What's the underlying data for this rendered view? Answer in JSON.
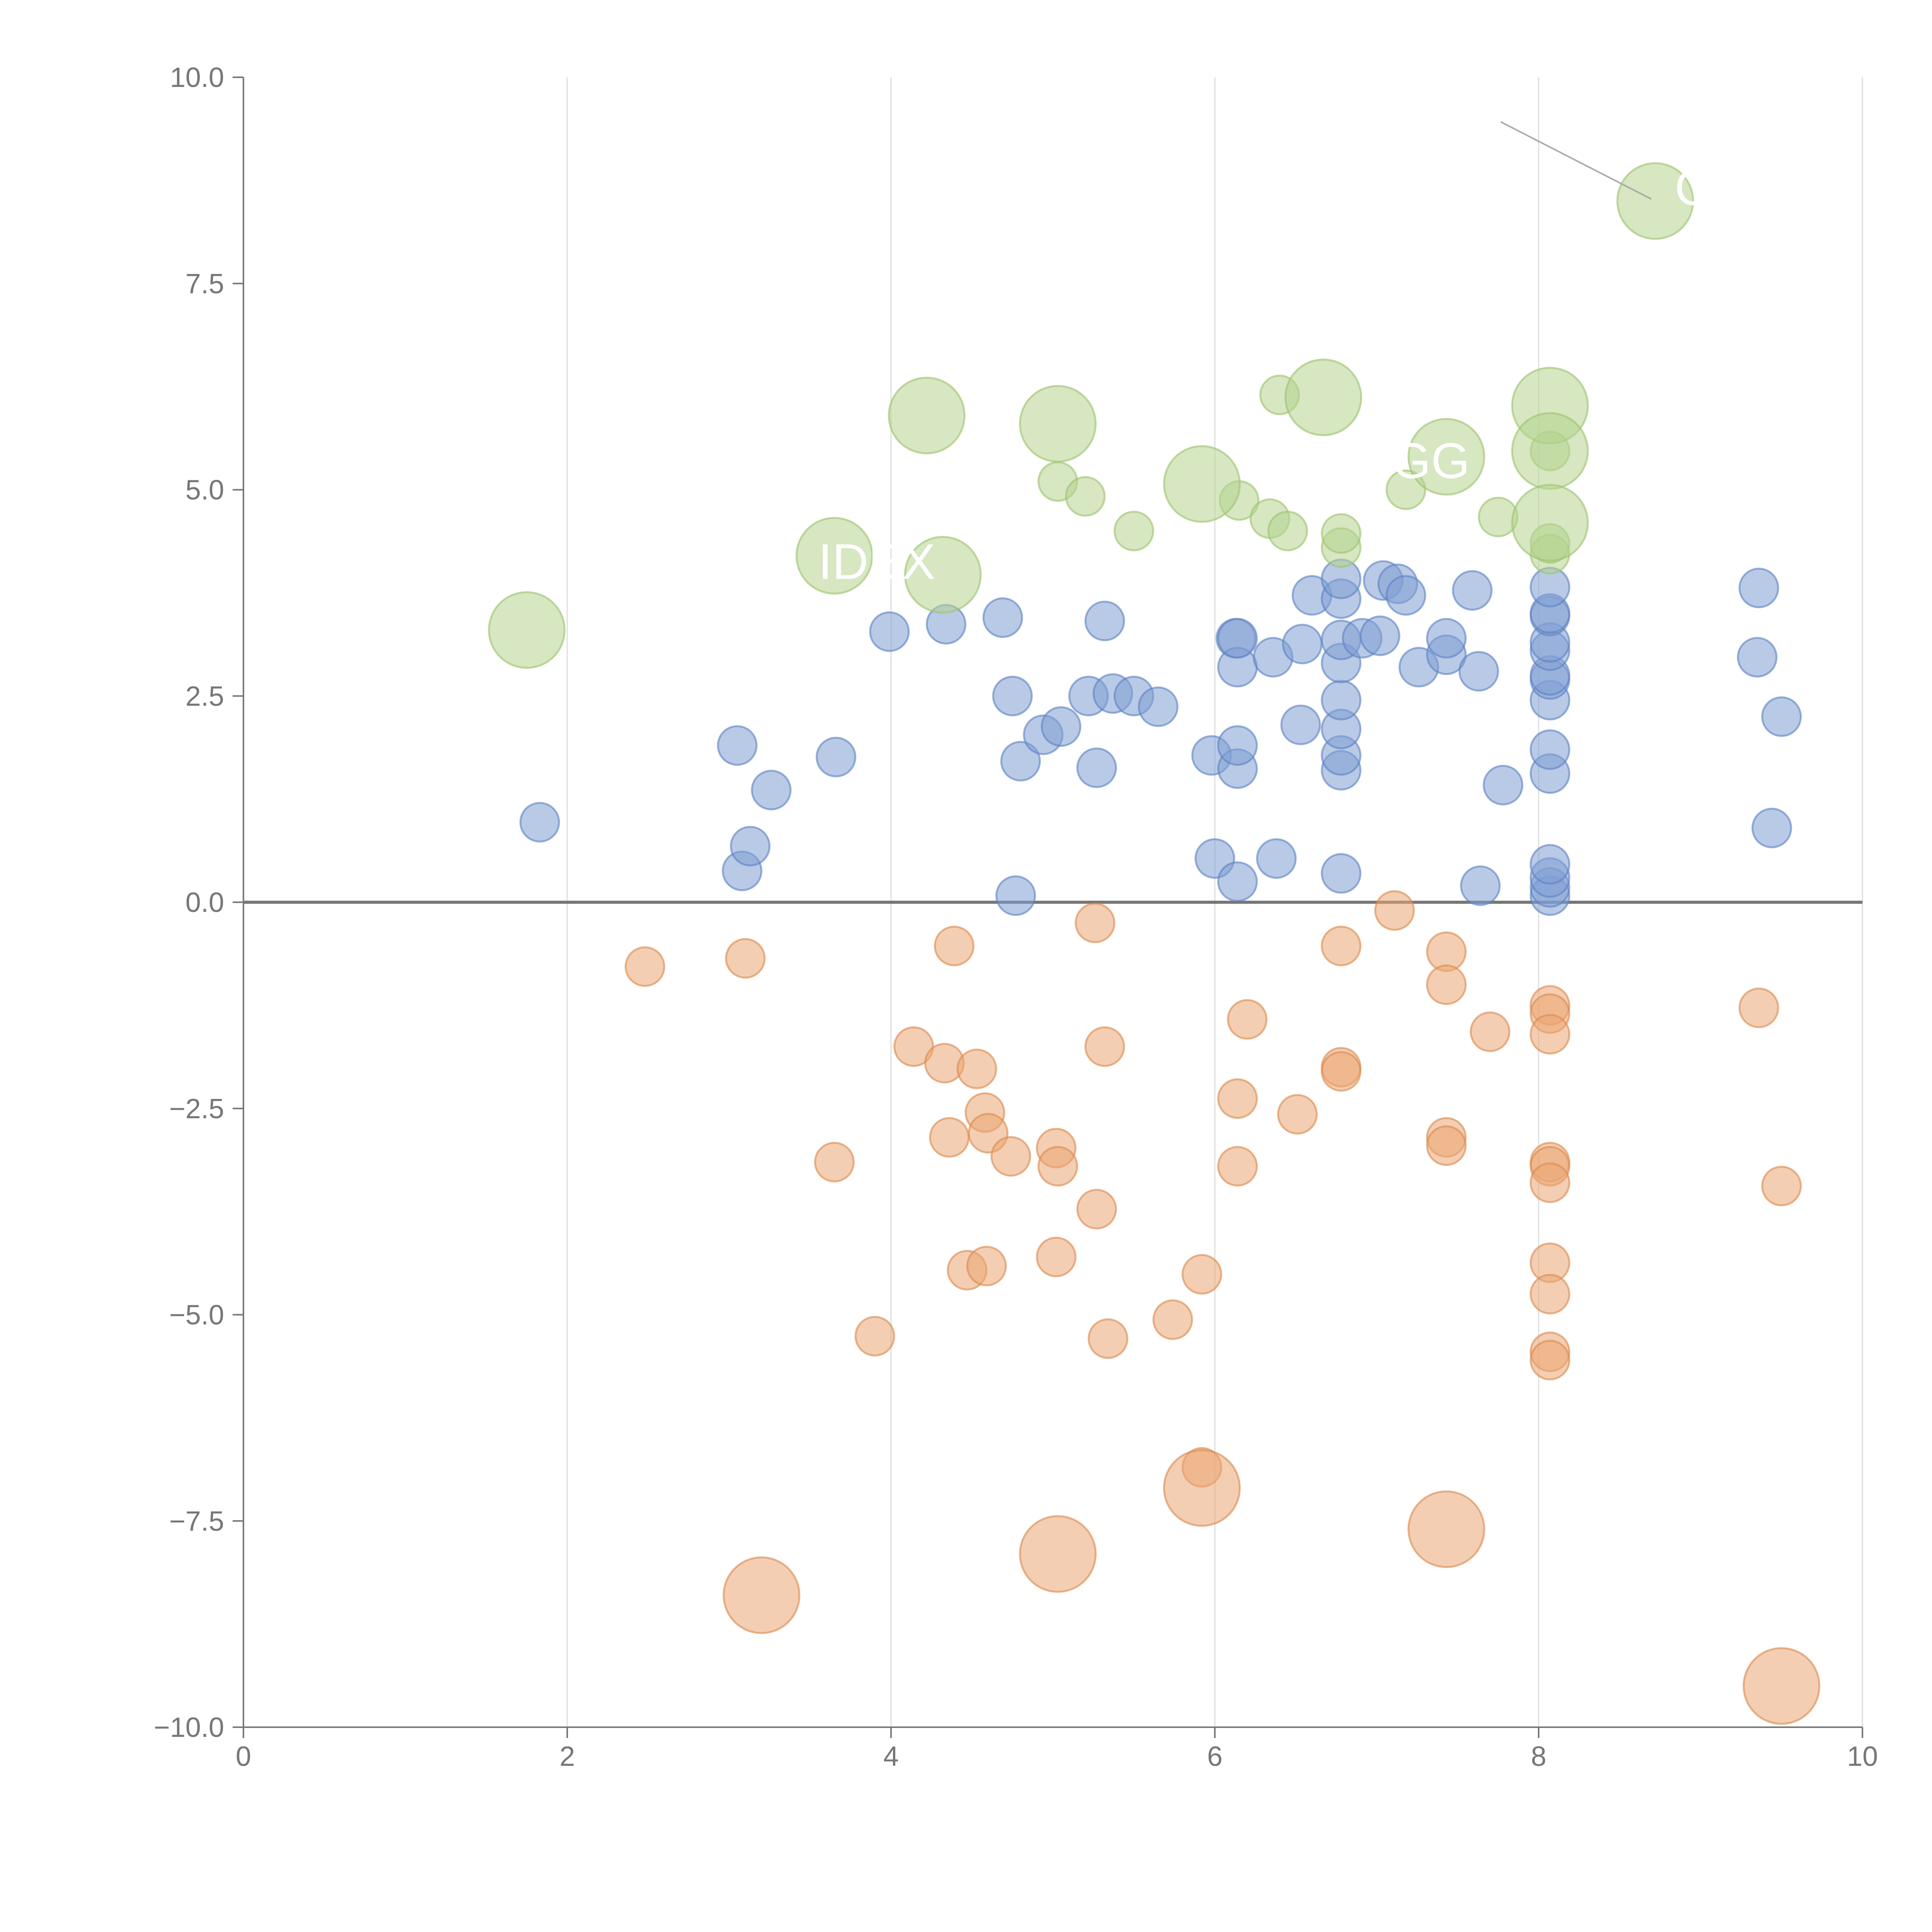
{
  "chart_data": {
    "type": "scatter",
    "title": "",
    "xlabel": "",
    "ylabel": "",
    "xlim": [
      0,
      10
    ],
    "ylim": [
      -10,
      10
    ],
    "x_ticks": [
      "0",
      "2",
      "4",
      "6",
      "8",
      "10"
    ],
    "y_ticks": [
      "10.0",
      "7.5",
      "5.0",
      "2.5",
      "0.0",
      "−2.5",
      "−5.0",
      "−7.5",
      "−10.0"
    ],
    "x_tick_values": [
      0,
      2,
      4,
      6,
      8,
      10
    ],
    "y_tick_values": [
      10,
      7.5,
      5,
      2.5,
      0,
      -2.5,
      -5,
      -7.5,
      -10
    ],
    "vertical_grid": true,
    "horizontal_grid": false,
    "zero_line": true,
    "legend": "none",
    "colors": {
      "positive": "#7f9fd3",
      "negative": "#eba572",
      "highlight": "#b5d38e",
      "axis": "#777777",
      "grid": "#dddddd"
    },
    "series": [
      {
        "color": "#7f9fd3",
        "stroke": "#5b80c2",
        "points": [
          [
            1.83,
            0.97,
            1
          ],
          [
            3.05,
            1.9,
            1
          ],
          [
            3.08,
            0.38,
            1
          ],
          [
            3.13,
            0.68,
            1
          ],
          [
            3.26,
            1.36,
            1
          ],
          [
            3.66,
            1.76,
            1
          ],
          [
            3.99,
            3.28,
            1
          ],
          [
            4.34,
            3.37,
            1
          ],
          [
            4.69,
            3.45,
            1
          ],
          [
            4.75,
            2.5,
            1
          ],
          [
            4.77,
            0.08,
            1
          ],
          [
            4.8,
            1.71,
            1
          ],
          [
            4.94,
            2.03,
            1
          ],
          [
            5.05,
            2.13,
            1
          ],
          [
            5.22,
            2.5,
            1
          ],
          [
            5.27,
            1.63,
            1
          ],
          [
            5.32,
            3.41,
            1
          ],
          [
            5.37,
            2.53,
            1
          ],
          [
            5.5,
            2.5,
            1
          ],
          [
            5.65,
            2.37,
            1
          ],
          [
            5.98,
            1.78,
            1
          ],
          [
            6.0,
            0.53,
            1
          ],
          [
            6.13,
            3.2,
            1
          ],
          [
            6.14,
            0.25,
            1
          ],
          [
            6.14,
            1.62,
            1
          ],
          [
            6.14,
            1.9,
            1
          ],
          [
            6.14,
            2.85,
            1
          ],
          [
            6.14,
            3.2,
            1
          ],
          [
            6.36,
            2.97,
            1
          ],
          [
            6.38,
            0.53,
            1
          ],
          [
            6.53,
            2.15,
            1
          ],
          [
            6.54,
            3.13,
            1
          ],
          [
            6.6,
            3.72,
            1
          ],
          [
            6.78,
            0.35,
            1
          ],
          [
            6.78,
            1.6,
            1
          ],
          [
            6.78,
            1.78,
            1
          ],
          [
            6.78,
            2.1,
            1
          ],
          [
            6.78,
            2.45,
            1
          ],
          [
            6.78,
            2.9,
            1
          ],
          [
            6.78,
            3.18,
            1
          ],
          [
            6.78,
            3.68,
            1
          ],
          [
            6.78,
            3.92,
            1
          ],
          [
            6.91,
            3.2,
            1
          ],
          [
            7.02,
            3.23,
            1
          ],
          [
            7.04,
            3.9,
            1
          ],
          [
            7.13,
            3.86,
            1
          ],
          [
            7.18,
            3.72,
            1
          ],
          [
            7.26,
            2.85,
            1
          ],
          [
            7.43,
            3.0,
            1
          ],
          [
            7.43,
            3.2,
            1
          ],
          [
            7.59,
            3.78,
            1
          ],
          [
            7.63,
            2.8,
            1
          ],
          [
            7.64,
            0.2,
            1
          ],
          [
            7.78,
            1.42,
            1
          ],
          [
            8.07,
            0.08,
            1
          ],
          [
            8.07,
            0.18,
            1
          ],
          [
            8.07,
            0.3,
            1
          ],
          [
            8.07,
            0.46,
            1
          ],
          [
            8.07,
            1.56,
            1
          ],
          [
            8.07,
            1.85,
            1
          ],
          [
            8.07,
            2.45,
            1
          ],
          [
            8.07,
            2.7,
            1
          ],
          [
            8.07,
            2.75,
            1
          ],
          [
            8.07,
            3.05,
            1
          ],
          [
            8.07,
            3.15,
            1
          ],
          [
            8.07,
            3.47,
            1
          ],
          [
            8.07,
            3.5,
            1
          ],
          [
            8.07,
            3.82,
            1
          ],
          [
            9.35,
            2.97,
            1
          ],
          [
            9.36,
            3.81,
            1
          ],
          [
            9.44,
            0.9,
            1
          ],
          [
            9.5,
            2.25,
            1
          ]
        ]
      },
      {
        "color": "#eba572",
        "stroke": "#d9884c",
        "points": [
          [
            2.48,
            -0.78,
            1
          ],
          [
            3.1,
            -0.68,
            1
          ],
          [
            3.65,
            -3.15,
            1
          ],
          [
            3.9,
            -5.26,
            1
          ],
          [
            4.14,
            -1.75,
            1
          ],
          [
            4.33,
            -1.95,
            1
          ],
          [
            4.36,
            -2.85,
            1
          ],
          [
            4.39,
            -0.53,
            1
          ],
          [
            4.47,
            -4.46,
            1
          ],
          [
            4.53,
            -2.02,
            1
          ],
          [
            4.58,
            -2.55,
            1
          ],
          [
            4.59,
            -4.41,
            1
          ],
          [
            4.6,
            -2.8,
            1
          ],
          [
            4.74,
            -3.08,
            1
          ],
          [
            5.02,
            -2.98,
            1
          ],
          [
            5.03,
            -3.2,
            1
          ],
          [
            5.02,
            -4.3,
            1
          ],
          [
            5.26,
            -0.25,
            1
          ],
          [
            5.27,
            -3.72,
            1
          ],
          [
            5.32,
            -1.75,
            1
          ],
          [
            5.34,
            -5.29,
            1
          ],
          [
            5.74,
            -5.06,
            1
          ],
          [
            5.92,
            -4.51,
            1
          ],
          [
            5.92,
            -6.85,
            1
          ],
          [
            6.14,
            -2.38,
            1
          ],
          [
            6.14,
            -3.2,
            1
          ],
          [
            6.2,
            -1.42,
            1
          ],
          [
            6.51,
            -2.57,
            1
          ],
          [
            6.78,
            -0.53,
            1
          ],
          [
            6.78,
            -2.0,
            1
          ],
          [
            6.78,
            -2.05,
            1
          ],
          [
            7.11,
            -0.1,
            1
          ],
          [
            7.43,
            -0.6,
            1
          ],
          [
            7.43,
            -1.0,
            1
          ],
          [
            7.43,
            -2.85,
            1
          ],
          [
            7.43,
            -2.95,
            1
          ],
          [
            7.7,
            -1.57,
            1
          ],
          [
            8.07,
            -1.25,
            1
          ],
          [
            8.07,
            -1.35,
            1
          ],
          [
            8.07,
            -1.6,
            1
          ],
          [
            8.07,
            -3.15,
            1
          ],
          [
            8.07,
            -3.2,
            1
          ],
          [
            8.07,
            -3.4,
            1
          ],
          [
            8.07,
            -4.37,
            1
          ],
          [
            8.07,
            -4.75,
            1
          ],
          [
            8.07,
            -5.45,
            1
          ],
          [
            8.07,
            -5.55,
            1
          ],
          [
            9.36,
            -1.28,
            1
          ],
          [
            9.5,
            -3.44,
            1
          ],
          [
            3.2,
            -8.4,
            2
          ],
          [
            5.03,
            -7.9,
            2
          ],
          [
            5.92,
            -7.1,
            2
          ],
          [
            7.43,
            -7.6,
            2
          ],
          [
            9.5,
            -9.5,
            2
          ]
        ]
      },
      {
        "color": "#b5d38e",
        "stroke": "#9cc26c",
        "points": [
          [
            5.03,
            5.1,
            1
          ],
          [
            5.2,
            4.92,
            1
          ],
          [
            5.5,
            4.5,
            1
          ],
          [
            6.15,
            4.87,
            1
          ],
          [
            6.34,
            4.65,
            1
          ],
          [
            6.4,
            6.15,
            1
          ],
          [
            6.45,
            4.5,
            1
          ],
          [
            6.78,
            4.3,
            1
          ],
          [
            6.78,
            4.47,
            1
          ],
          [
            7.18,
            5.0,
            1
          ],
          [
            7.75,
            4.67,
            1
          ],
          [
            8.07,
            4.22,
            1
          ],
          [
            8.07,
            4.35,
            1
          ],
          [
            8.07,
            5.47,
            1
          ],
          [
            1.75,
            3.3,
            2
          ],
          [
            3.65,
            4.2,
            2
          ],
          [
            4.22,
            5.9,
            2
          ],
          [
            4.32,
            3.97,
            2
          ],
          [
            5.03,
            5.8,
            2
          ],
          [
            5.92,
            5.07,
            2
          ],
          [
            6.67,
            6.12,
            2
          ],
          [
            7.43,
            5.4,
            2
          ],
          [
            8.07,
            6.02,
            2
          ],
          [
            8.07,
            5.47,
            2
          ],
          [
            8.07,
            4.6,
            2
          ],
          [
            8.72,
            8.5,
            2
          ]
        ]
      }
    ],
    "annotations": [
      {
        "text": "IDEX",
        "x": 3.65,
        "y": 4.2
      },
      {
        "text": "GG",
        "x": 7.43,
        "y": 5.4
      },
      {
        "text": "C",
        "x": 8.72,
        "y": 8.5
      }
    ]
  }
}
